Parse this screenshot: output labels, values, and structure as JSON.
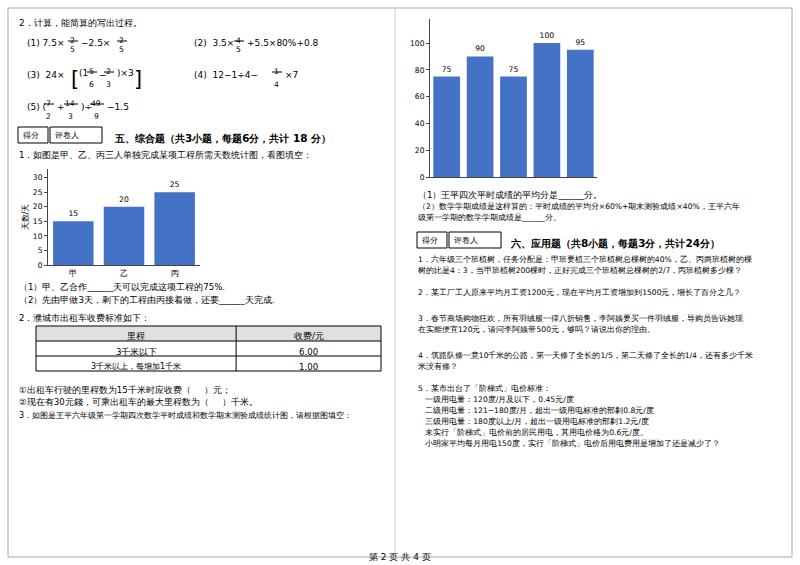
{
  "chart_data": [
    {
      "type": "bar",
      "categories": [
        "甲",
        "乙",
        "丙"
      ],
      "values": [
        15,
        20,
        25
      ],
      "color": "#4472C4",
      "ylabel": "天数/天",
      "ylim": [
        0,
        33
      ],
      "yticks": [
        0,
        5,
        10,
        15,
        20,
        25,
        30
      ],
      "grid": false,
      "data_labels": true,
      "annotations": [
        "2．计算，能简算的写出过程。",
        "(1) 7.5×",
        "2",
        "5",
        "−2.5×",
        "2",
        "5",
        "(2)  3.5×",
        "4",
        "5",
        "+5.5×80%+0.8",
        "(3)  24×",
        "[",
        "(1",
        "5",
        "6",
        "−",
        "2",
        "3",
        ")×3",
        "]",
        "(4)  12−1÷4−",
        "1",
        "4",
        "×7",
        "(5) (",
        "7",
        "2",
        "+",
        "14",
        "3",
        ")÷",
        "49",
        "9",
        "−1.5",
        "得分",
        "评卷人",
        "五、综合题（共3小题，每题6分，共计 18 分）",
        "1．如图是甲、乙、丙三人单独完成某项工程所需天数统计图，看图填空：",
        "（1）甲、乙合作______天可以完成这项工程的75%.",
        "（2）先由甲做3天，剩下的工程由丙接着做，还要______天完成.",
        "2．濮城市出租车收费标准如下：",
        "里程",
        "收费/元",
        "3千米以下",
        "6.00",
        "3千米以上，每增加1千米",
        "1.00",
        "①出租车行驶的里程数为15千米时应收费（     ）元；",
        "②现在有30元錢，可乘出租车的最大里程数为（     ）千米。",
        "3．如图是王平六年级第一学期四次数学平时成绩和数学期末测验成绩统计图，请根据图填空："
      ]
    },
    {
      "type": "bar",
      "categories": [
        null,
        null,
        null,
        null,
        null
      ],
      "values": [
        75,
        90,
        75,
        100,
        95
      ],
      "color": "#4472C4",
      "ylim": [
        0,
        118
      ],
      "yticks": [
        0,
        20,
        40,
        60,
        80,
        100
      ],
      "grid": false,
      "data_labels": true,
      "tick_labels": "y",
      "annotations": [
        "（1）王平四次平时成绩的平均分是______分。",
        "（2）数学学期成绩是这样算的：平时成绩的平均分×60%+期末测验成绩×40%，王平六年",
        "级第一学期的数学学期成绩是______分。",
        "得分",
        "评卷人",
        "六、应用题（共8小题，每题3分，共计24分）",
        "1．六年级三个班植树，任务分配是：甲班要植三个班植树总棵树的40%，乙、丙两班植树的棵",
        "树的比是4：3，当甲班植树200棵时，正好完成三个班植树总棵树的2/7，丙班植树多少棵？",
        "2．某工厂工人原来平均月工资1200元，现在平均月工资增加到1500元，增长了百分之几？",
        "3．春节商场购物狂欢，所有羽绒服一律八折销售，李阿姨要买一件羽绒服，导购员告诉她现",
        "在实能便宜120元，请问李阿姨带500元，够吗？请说出你的理由。",
        "4．筑路队修一意10千米的公路，第一天修了全长的1/5，第二天修了全长的1/4，还有多少千米",
        "米没有修？",
        "5．某市出台了「阶梯式」电价标准：",
        "   一级用电量：120度/月及以下，0.45元/度",
        "   二级用电量：121−180度/月，超出一级用电标准的部剶0.8元/度",
        "   三级用电量：180度以上/月，超出一级用电标准的部剶1.2元/度",
        "   未实行「阶梯式」电价前的居民用电，其用电价格为0.6元/度。",
        "   小明家平均每月用电150度，实行「阶梯式」电价后用电费用是增加了还是减少了？",
        "第 2 页 共 4 页"
      ]
    }
  ]
}
